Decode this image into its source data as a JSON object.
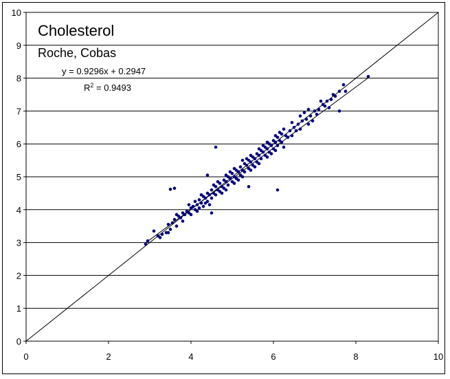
{
  "chart_data": {
    "type": "scatter",
    "title": "Cholesterol",
    "subtitle": "Roche, Cobas",
    "annotations": {
      "equation": "y = 0.9296x + 0.2947",
      "r2_label": "R",
      "r2_exp": "2",
      "r2_value": " = 0.9493"
    },
    "xlabel": "",
    "ylabel": "",
    "xlim": [
      0,
      10
    ],
    "ylim": [
      0,
      10
    ],
    "x_ticks": [
      "0",
      "2",
      "4",
      "6",
      "8",
      "10"
    ],
    "y_ticks": [
      "0",
      "1",
      "2",
      "3",
      "4",
      "5",
      "6",
      "7",
      "8",
      "9",
      "10"
    ],
    "grid": "horizontal major gridlines",
    "identity_line": {
      "slope": 1,
      "intercept": 0
    },
    "trendline": {
      "slope": 0.9296,
      "intercept": 0.2947,
      "x_range": [
        2.9,
        8.3
      ]
    },
    "marker_color": "#000080",
    "outliers": [
      {
        "x": 3.6,
        "y": 4.65
      },
      {
        "x": 3.5,
        "y": 4.62
      },
      {
        "x": 4.6,
        "y": 5.9
      },
      {
        "x": 6.1,
        "y": 4.6
      },
      {
        "x": 4.4,
        "y": 5.05
      },
      {
        "x": 7.6,
        "y": 7.0
      },
      {
        "x": 4.5,
        "y": 3.9
      },
      {
        "x": 5.4,
        "y": 4.7
      }
    ],
    "points": [
      [
        2.9,
        2.95
      ],
      [
        2.95,
        3.05
      ],
      [
        3.1,
        3.35
      ],
      [
        3.2,
        3.2
      ],
      [
        3.25,
        3.15
      ],
      [
        3.3,
        3.25
      ],
      [
        3.4,
        3.3
      ],
      [
        3.45,
        3.55
      ],
      [
        3.5,
        3.4
      ],
      [
        3.55,
        3.6
      ],
      [
        3.6,
        3.7
      ],
      [
        3.65,
        3.5
      ],
      [
        3.7,
        3.8
      ],
      [
        3.75,
        3.75
      ],
      [
        3.8,
        3.65
      ],
      [
        3.8,
        3.9
      ],
      [
        3.85,
        3.85
      ],
      [
        3.9,
        3.95
      ],
      [
        3.95,
        3.9
      ],
      [
        4.0,
        4.05
      ],
      [
        4.0,
        3.85
      ],
      [
        4.05,
        4.1
      ],
      [
        4.1,
        4.0
      ],
      [
        4.1,
        4.25
      ],
      [
        4.15,
        4.15
      ],
      [
        4.2,
        4.3
      ],
      [
        4.2,
        4.05
      ],
      [
        4.25,
        4.2
      ],
      [
        4.3,
        4.4
      ],
      [
        4.3,
        4.1
      ],
      [
        4.35,
        4.35
      ],
      [
        4.4,
        4.5
      ],
      [
        4.4,
        4.25
      ],
      [
        4.45,
        4.45
      ],
      [
        4.5,
        4.6
      ],
      [
        4.5,
        4.35
      ],
      [
        4.55,
        4.5
      ],
      [
        4.6,
        4.7
      ],
      [
        4.6,
        4.45
      ],
      [
        4.65,
        4.6
      ],
      [
        4.7,
        4.8
      ],
      [
        4.7,
        4.55
      ],
      [
        4.75,
        4.7
      ],
      [
        4.8,
        4.9
      ],
      [
        4.8,
        4.65
      ],
      [
        4.85,
        4.85
      ],
      [
        4.9,
        5.0
      ],
      [
        4.9,
        4.75
      ],
      [
        4.95,
        4.95
      ],
      [
        5.0,
        5.1
      ],
      [
        5.0,
        4.85
      ],
      [
        5.05,
        5.0
      ],
      [
        5.1,
        5.2
      ],
      [
        5.1,
        4.95
      ],
      [
        5.15,
        5.15
      ],
      [
        5.2,
        5.3
      ],
      [
        5.2,
        5.05
      ],
      [
        5.25,
        5.2
      ],
      [
        5.3,
        5.4
      ],
      [
        5.3,
        5.15
      ],
      [
        5.35,
        5.35
      ],
      [
        5.4,
        5.5
      ],
      [
        5.4,
        5.25
      ],
      [
        5.45,
        5.45
      ],
      [
        5.5,
        5.6
      ],
      [
        5.5,
        5.35
      ],
      [
        5.55,
        5.55
      ],
      [
        5.6,
        5.7
      ],
      [
        5.6,
        5.45
      ],
      [
        5.65,
        5.65
      ],
      [
        5.7,
        5.8
      ],
      [
        5.7,
        5.55
      ],
      [
        5.75,
        5.75
      ],
      [
        5.8,
        5.9
      ],
      [
        5.8,
        5.65
      ],
      [
        5.85,
        5.85
      ],
      [
        5.9,
        6.0
      ],
      [
        5.9,
        5.75
      ],
      [
        5.95,
        5.95
      ],
      [
        6.0,
        6.1
      ],
      [
        6.0,
        5.85
      ],
      [
        6.05,
        6.05
      ],
      [
        6.1,
        6.2
      ],
      [
        6.1,
        5.95
      ],
      [
        6.15,
        6.1
      ],
      [
        6.2,
        6.3
      ],
      [
        6.2,
        6.05
      ],
      [
        6.3,
        6.25
      ],
      [
        6.4,
        6.4
      ],
      [
        6.5,
        6.5
      ],
      [
        6.6,
        6.6
      ],
      [
        6.7,
        6.7
      ],
      [
        6.8,
        6.75
      ],
      [
        6.9,
        6.85
      ],
      [
        7.0,
        7.0
      ],
      [
        7.1,
        7.05
      ],
      [
        7.2,
        7.2
      ],
      [
        7.3,
        7.3
      ],
      [
        7.4,
        7.35
      ],
      [
        7.5,
        7.45
      ],
      [
        7.6,
        7.6
      ],
      [
        7.7,
        7.8
      ],
      [
        7.75,
        7.6
      ],
      [
        8.3,
        8.05
      ],
      [
        4.35,
        4.2
      ],
      [
        4.55,
        4.75
      ],
      [
        4.75,
        4.5
      ],
      [
        4.95,
        5.15
      ],
      [
        5.15,
        4.9
      ],
      [
        5.35,
        5.55
      ],
      [
        5.55,
        5.3
      ],
      [
        5.75,
        5.95
      ],
      [
        5.95,
        5.7
      ],
      [
        6.15,
        6.35
      ],
      [
        6.35,
        6.2
      ],
      [
        6.55,
        6.4
      ],
      [
        6.75,
        6.95
      ],
      [
        6.95,
        6.7
      ],
      [
        7.15,
        7.3
      ],
      [
        7.35,
        7.1
      ],
      [
        3.95,
        4.15
      ],
      [
        4.15,
        3.95
      ],
      [
        3.65,
        3.85
      ],
      [
        3.45,
        3.3
      ],
      [
        4.85,
        4.6
      ],
      [
        5.05,
        5.25
      ],
      [
        5.25,
        5.5
      ],
      [
        5.45,
        5.2
      ],
      [
        5.65,
        5.85
      ],
      [
        5.85,
        5.6
      ],
      [
        6.05,
        6.25
      ],
      [
        6.25,
        5.9
      ],
      [
        6.45,
        6.65
      ],
      [
        6.65,
        6.45
      ],
      [
        6.85,
        7.05
      ],
      [
        7.05,
        6.9
      ],
      [
        7.25,
        7.15
      ],
      [
        7.45,
        7.5
      ],
      [
        4.25,
        4.45
      ],
      [
        4.45,
        4.15
      ],
      [
        4.65,
        4.85
      ],
      [
        4.85,
        5.05
      ],
      [
        5.05,
        4.8
      ],
      [
        5.25,
        5.0
      ],
      [
        5.45,
        5.65
      ],
      [
        5.65,
        5.4
      ],
      [
        5.85,
        6.05
      ],
      [
        6.05,
        5.8
      ],
      [
        6.25,
        6.45
      ],
      [
        6.45,
        6.25
      ],
      [
        6.65,
        6.85
      ],
      [
        6.85,
        6.6
      ]
    ]
  }
}
